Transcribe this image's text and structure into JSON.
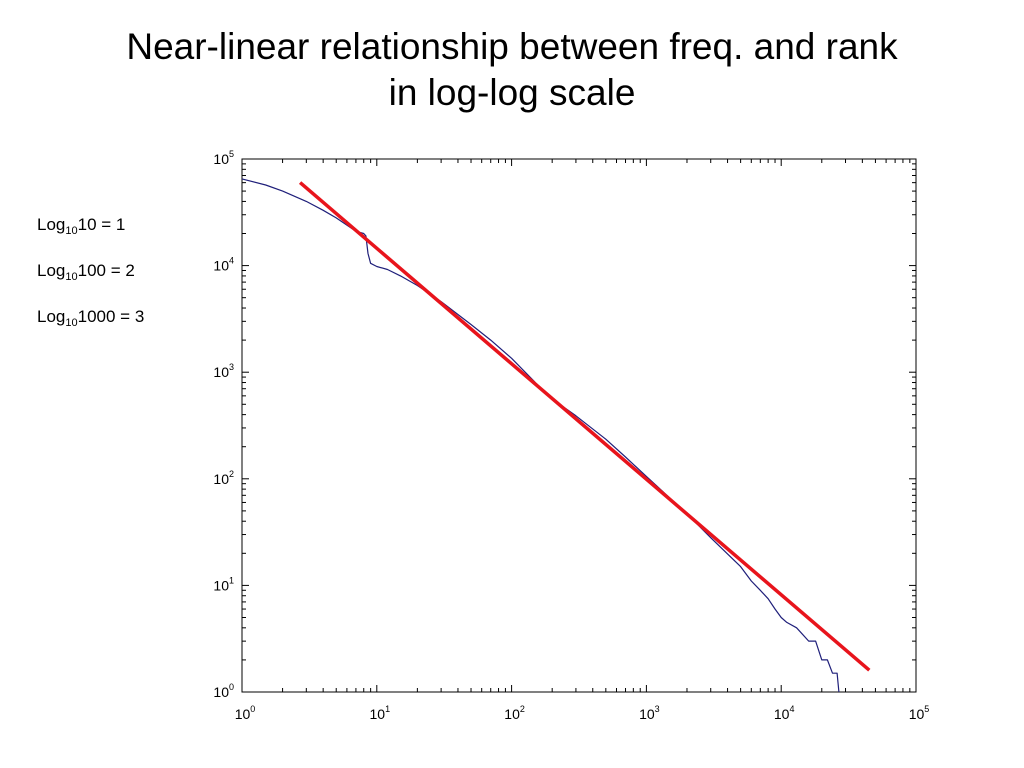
{
  "title": {
    "line1": "Near-linear relationship between freq. and rank",
    "line2": "in log-log scale"
  },
  "notes": [
    {
      "base": "Log",
      "sub": "10",
      "arg": "10",
      "rest": " = 1"
    },
    {
      "base": "Log",
      "sub": "10",
      "arg": "100",
      "rest": " = 2"
    },
    {
      "base": "Log",
      "sub": "10",
      "arg": "1000",
      "rest": " = 3"
    }
  ],
  "colors": {
    "data_line": "#1f1f7a",
    "fit_line": "#e8141c",
    "axes": "#000000"
  },
  "chart_data": {
    "type": "line",
    "xscale": "log",
    "yscale": "log",
    "xlim": [
      1,
      100000
    ],
    "ylim": [
      1,
      100000
    ],
    "grid": false,
    "x_tick_labels": [
      "10^0",
      "10^1",
      "10^2",
      "10^3",
      "10^4",
      "10^5"
    ],
    "y_tick_labels": [
      "10^0",
      "10^1",
      "10^2",
      "10^3",
      "10^4",
      "10^5"
    ],
    "series": [
      {
        "style": "line",
        "color": "#1f1f7a",
        "x": [
          1,
          1.5,
          2,
          3,
          4,
          5,
          6,
          7,
          8,
          8.3,
          8.6,
          9,
          10,
          12,
          15,
          20,
          30,
          50,
          70,
          100,
          150,
          200,
          300,
          500,
          700,
          1000,
          2000,
          3000,
          5000,
          6000,
          7000,
          8000,
          9000,
          10000,
          11000,
          13000,
          16000,
          18000,
          20000,
          22000,
          24000,
          26000,
          26800
        ],
        "y": [
          65000,
          57000,
          50000,
          40000,
          33000,
          28000,
          24000,
          21000,
          20000,
          19000,
          13000,
          10500,
          9800,
          9200,
          8000,
          6500,
          4600,
          2800,
          2000,
          1350,
          800,
          560,
          390,
          235,
          160,
          105,
          47,
          28,
          15,
          11,
          9,
          7.5,
          6,
          5,
          4.5,
          4,
          3,
          3,
          2,
          2,
          1.5,
          1.5,
          1
        ]
      },
      {
        "style": "line",
        "color": "#e8141c",
        "x": [
          2.7,
          45000
        ],
        "y": [
          60000,
          1.6
        ]
      }
    ]
  }
}
